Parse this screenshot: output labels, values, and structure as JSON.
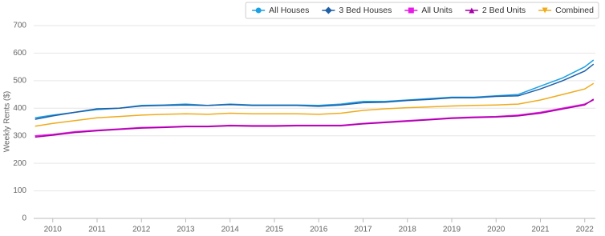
{
  "chart_data": {
    "type": "line",
    "y_label": "Weekly Rents ($)",
    "x": [
      2009.6,
      2010.0,
      2010.5,
      2011.0,
      2011.5,
      2012.0,
      2012.5,
      2013.0,
      2013.5,
      2014.0,
      2014.5,
      2015.0,
      2015.5,
      2016.0,
      2016.5,
      2017.0,
      2017.5,
      2018.0,
      2018.5,
      2019.0,
      2019.5,
      2020.0,
      2020.5,
      2021.0,
      2021.5,
      2022.0,
      2022.2
    ],
    "series": [
      {
        "name": "All Houses",
        "color": "#1ba1e2",
        "marker": "circle",
        "values": [
          365,
          375,
          385,
          395,
          400,
          410,
          412,
          415,
          410,
          415,
          412,
          412,
          412,
          410,
          415,
          425,
          425,
          430,
          435,
          440,
          440,
          445,
          450,
          480,
          510,
          550,
          575
        ]
      },
      {
        "name": "3 Bed Houses",
        "color": "#1f5fa8",
        "marker": "diamond",
        "values": [
          360,
          372,
          385,
          398,
          400,
          408,
          410,
          412,
          410,
          413,
          410,
          410,
          410,
          407,
          412,
          420,
          422,
          428,
          432,
          438,
          438,
          443,
          445,
          470,
          500,
          535,
          560
        ]
      },
      {
        "name": "All Units",
        "color": "#e619e6",
        "marker": "square",
        "values": [
          300,
          305,
          315,
          320,
          325,
          330,
          332,
          335,
          335,
          338,
          337,
          337,
          338,
          338,
          338,
          345,
          350,
          355,
          360,
          365,
          368,
          370,
          375,
          385,
          400,
          415,
          430
        ]
      },
      {
        "name": "2 Bed Units",
        "color": "#a600a6",
        "marker": "triangle",
        "values": [
          295,
          302,
          312,
          318,
          323,
          328,
          330,
          333,
          333,
          336,
          335,
          335,
          336,
          336,
          336,
          343,
          348,
          353,
          358,
          363,
          366,
          368,
          372,
          382,
          397,
          412,
          433
        ]
      },
      {
        "name": "Combined",
        "color": "#f0ab1b",
        "marker": "triangle-down",
        "values": [
          335,
          345,
          355,
          365,
          370,
          375,
          378,
          380,
          378,
          382,
          380,
          380,
          380,
          378,
          382,
          392,
          398,
          402,
          405,
          408,
          410,
          412,
          415,
          430,
          450,
          470,
          490
        ]
      }
    ],
    "xlim": [
      2009.57,
      2022.24
    ],
    "xticks": [
      2010,
      2011,
      2012,
      2013,
      2014,
      2015,
      2016,
      2017,
      2018,
      2019,
      2020,
      2021,
      2022
    ],
    "ylim": [
      0,
      700
    ],
    "yticks": [
      0,
      100,
      200,
      300,
      400,
      500,
      600,
      700
    ],
    "grid": true,
    "legend": "top-right"
  }
}
